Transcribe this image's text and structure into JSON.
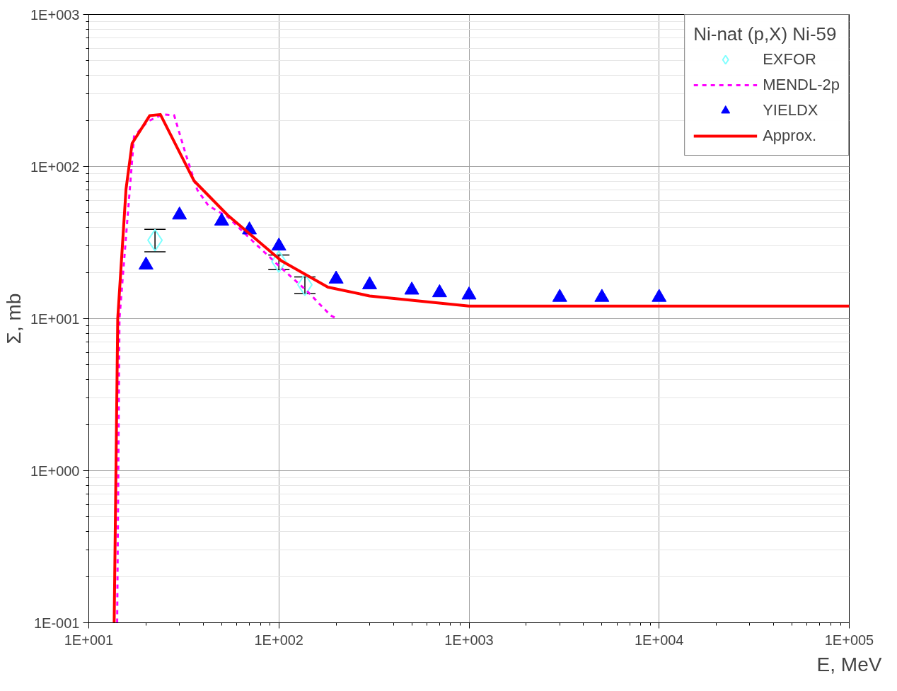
{
  "chart_data": {
    "type": "line",
    "xlabel": "E, MeV",
    "ylabel": "Σ, mb",
    "legend_title": "Ni-nat (p,X) Ni-59",
    "log": "xy",
    "grid": true,
    "legend": "top right",
    "xlim": [
      10,
      100000
    ],
    "ylim": [
      0.1,
      1000
    ],
    "xticks": [
      {
        "value": 10,
        "label": "1E+001"
      },
      {
        "value": 100,
        "label": "1E+002"
      },
      {
        "value": 1000,
        "label": "1E+003"
      },
      {
        "value": 10000,
        "label": "1E+004"
      },
      {
        "value": 100000,
        "label": "1E+005"
      }
    ],
    "yticks": [
      {
        "value": 0.1,
        "label": "1E-001"
      },
      {
        "value": 1,
        "label": "1E+000"
      },
      {
        "value": 10,
        "label": "1E+001"
      },
      {
        "value": 100,
        "label": "1E+002"
      },
      {
        "value": 1000,
        "label": "1E+003"
      }
    ],
    "series": [
      {
        "name": "EXFOR",
        "type": "scatter",
        "marker": "diamond",
        "color": "#80ffff",
        "x": [
          22.3,
          100,
          137
        ],
        "values": [
          32.8,
          23.7,
          16.7
        ],
        "errors": [
          [
            27.5,
            38.7
          ],
          [
            21.0,
            26.2
          ],
          [
            14.6,
            18.8
          ]
        ]
      },
      {
        "name": "MENDL-2p",
        "line_style": "dashed",
        "color": "#ff00ff",
        "x": [
          14.1,
          14.5,
          17.3,
          20.4,
          24.5,
          28.1,
          32.4,
          37.2,
          42.6,
          53.8,
          74.2,
          103,
          142,
          187,
          202
        ],
        "values": [
          0.1,
          10,
          158,
          198,
          220,
          218,
          120,
          70.4,
          55.3,
          46.7,
          31.6,
          21.5,
          15,
          10.5,
          10
        ]
      },
      {
        "name": "YIELDX",
        "type": "scatter",
        "marker": "triangle",
        "color": "#0000ff",
        "x": [
          20,
          30,
          50,
          70,
          100,
          200,
          300,
          500,
          700,
          1000,
          3000,
          5000,
          10000
        ],
        "values": [
          22.5,
          48,
          43.8,
          38.3,
          30,
          18.2,
          16.7,
          15.4,
          14.8,
          14.3,
          13.8,
          13.8,
          13.8
        ]
      },
      {
        "name": "Approx.",
        "line_style": "solid",
        "color": "#ff0000",
        "x": [
          13.6,
          14.2,
          15.7,
          16.9,
          20.9,
          23.8,
          35.8,
          53.8,
          103,
          181,
          300,
          1000,
          100000
        ],
        "values": [
          0.1,
          10,
          71,
          142,
          216,
          220,
          80.5,
          47.9,
          24,
          16.1,
          14.1,
          12.1,
          12.1
        ]
      }
    ]
  }
}
